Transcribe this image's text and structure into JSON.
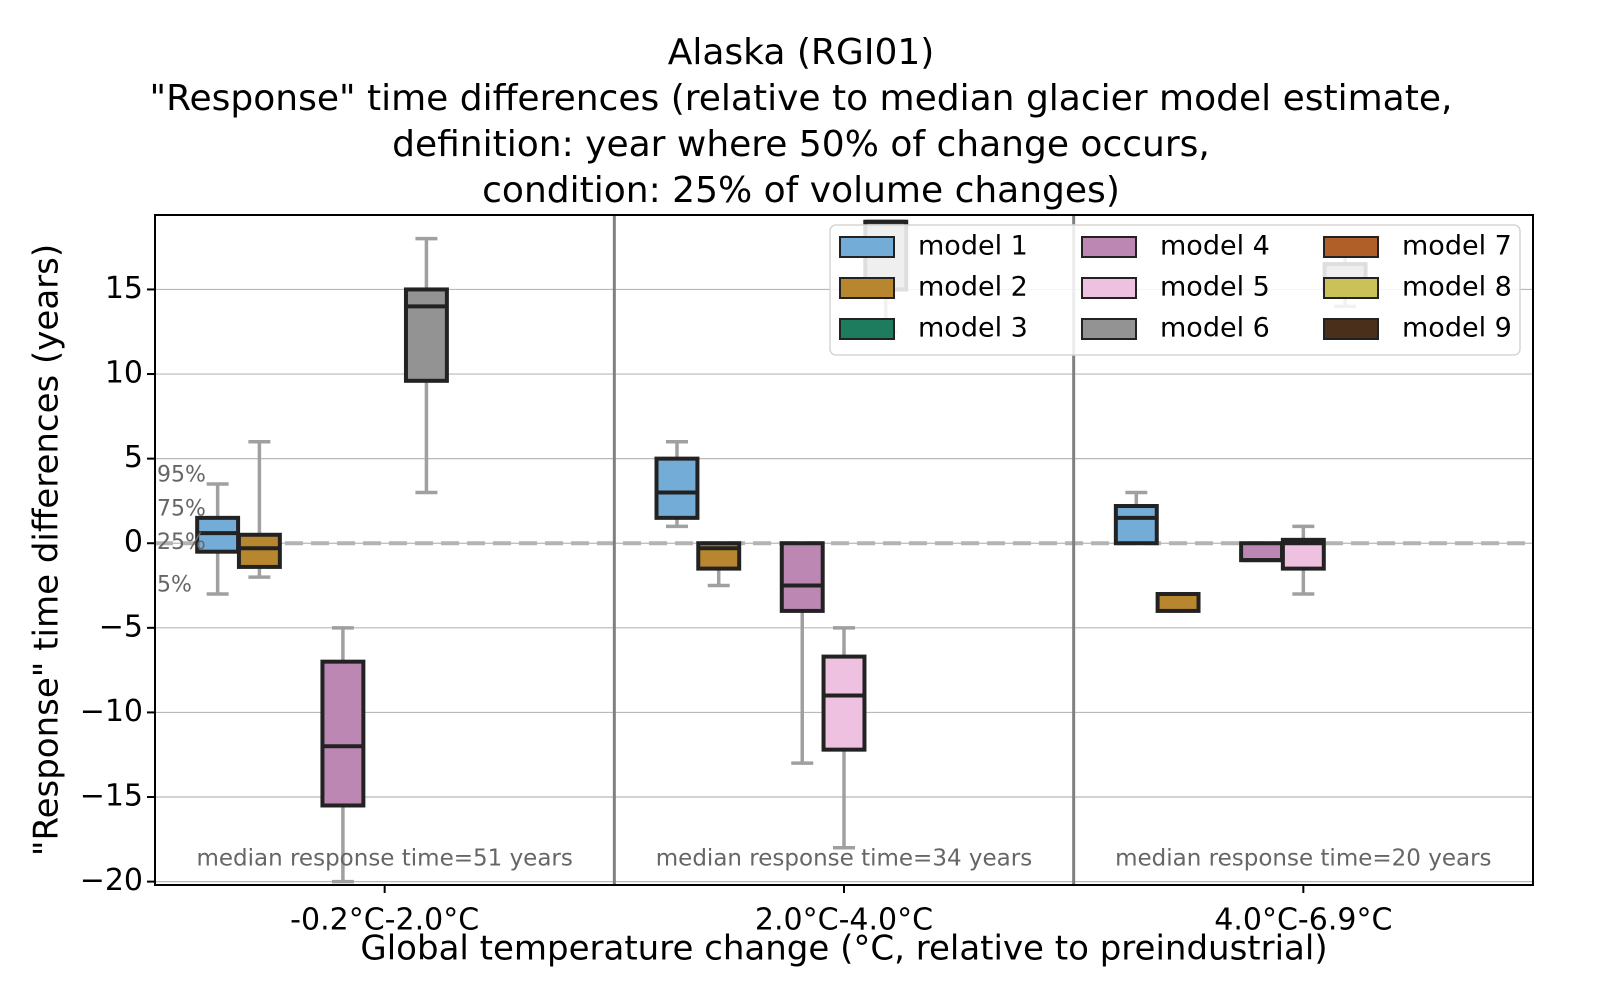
{
  "chart_data": {
    "type": "box",
    "title": [
      "Alaska (RGI01)",
      "\"Response\" time differences (relative to median glacier model estimate,",
      "definition: year where 50% of change occurs,",
      "condition: 25% of volume changes)"
    ],
    "xlabel": "Global temperature change (°C, relative to preindustrial)",
    "ylabel": "\"Response\" time differences (years)",
    "ylim": [
      -20.2,
      19.4
    ],
    "yticks": [
      15,
      10,
      5,
      0,
      -5,
      -10,
      -15,
      -20
    ],
    "ytick_labels": [
      "15",
      "10",
      "5",
      "0",
      "−5",
      "−10",
      "−15",
      "−20"
    ],
    "grid": true,
    "reference_line": 0,
    "legend_position": "top-right",
    "legend": [
      {
        "name": "model 1",
        "color": "#73acd6"
      },
      {
        "name": "model 2",
        "color": "#b8862f"
      },
      {
        "name": "model 3",
        "color": "#1e7c5e"
      },
      {
        "name": "model 4",
        "color": "#bd87b4"
      },
      {
        "name": "model 5",
        "color": "#efc1e0"
      },
      {
        "name": "model 6",
        "color": "#939393"
      },
      {
        "name": "model 7",
        "color": "#b05f29"
      },
      {
        "name": "model 8",
        "color": "#cbc159"
      },
      {
        "name": "model 9",
        "color": "#4a301b"
      }
    ],
    "percentile_labels": [
      {
        "text": "95%",
        "y": 4
      },
      {
        "text": "75%",
        "y": 2
      },
      {
        "text": "25%",
        "y": 0
      },
      {
        "text": "5%",
        "y": -2.5
      }
    ],
    "groups": [
      {
        "label": "-0.2°C-2.0°C",
        "median_note": "median response time=51 years",
        "boxes": [
          {
            "model": "model 1",
            "whisker_low": -3,
            "q1": -0.5,
            "median": 0.6,
            "q3": 1.5,
            "whisker_high": 3.5
          },
          {
            "model": "model 2",
            "whisker_low": -2,
            "q1": -1.4,
            "median": -0.3,
            "q3": 0.5,
            "whisker_high": 6
          },
          {
            "model": "model 4",
            "whisker_low": -20,
            "q1": -15.5,
            "median": -12,
            "q3": -7,
            "whisker_high": -5
          },
          {
            "model": "model 6",
            "whisker_low": 3,
            "q1": 9.6,
            "median": 14,
            "q3": 15,
            "whisker_high": 18
          }
        ]
      },
      {
        "label": "2.0°C-4.0°C",
        "median_note": "median response time=34 years",
        "boxes": [
          {
            "model": "model 1",
            "whisker_low": 1,
            "q1": 1.5,
            "median": 3,
            "q3": 5,
            "whisker_high": 6
          },
          {
            "model": "model 2",
            "whisker_low": -2.5,
            "q1": -1.5,
            "median": -0.3,
            "q3": 0,
            "whisker_high": 0
          },
          {
            "model": "model 4",
            "whisker_low": -13,
            "q1": -4,
            "median": -2.5,
            "q3": 0,
            "whisker_high": 0
          },
          {
            "model": "model 5",
            "whisker_low": -18,
            "q1": -12.2,
            "median": -9,
            "q3": -6.7,
            "whisker_high": -5
          },
          {
            "model": "model 6",
            "whisker_low": 12.5,
            "q1": 15,
            "median": 19,
            "q3": 19,
            "whisker_high": 19
          }
        ]
      },
      {
        "label": "4.0°C-6.9°C",
        "median_note": "median response time=20 years",
        "boxes": [
          {
            "model": "model 1",
            "whisker_low": 0,
            "q1": 0,
            "median": 1.5,
            "q3": 2.2,
            "whisker_high": 3
          },
          {
            "model": "model 2",
            "whisker_low": -4,
            "q1": -4,
            "median": -3,
            "q3": -3,
            "whisker_high": -3
          },
          {
            "model": "model 4",
            "whisker_low": -1,
            "q1": -1,
            "median": -1,
            "q3": 0,
            "whisker_high": 0
          },
          {
            "model": "model 5",
            "whisker_low": -3,
            "q1": -1.5,
            "median": 0,
            "q3": 0.2,
            "whisker_high": 1
          },
          {
            "model": "model 6",
            "whisker_low": 14,
            "q1": 15,
            "median": 15,
            "q3": 16.5,
            "whisker_high": 17
          }
        ]
      }
    ]
  }
}
